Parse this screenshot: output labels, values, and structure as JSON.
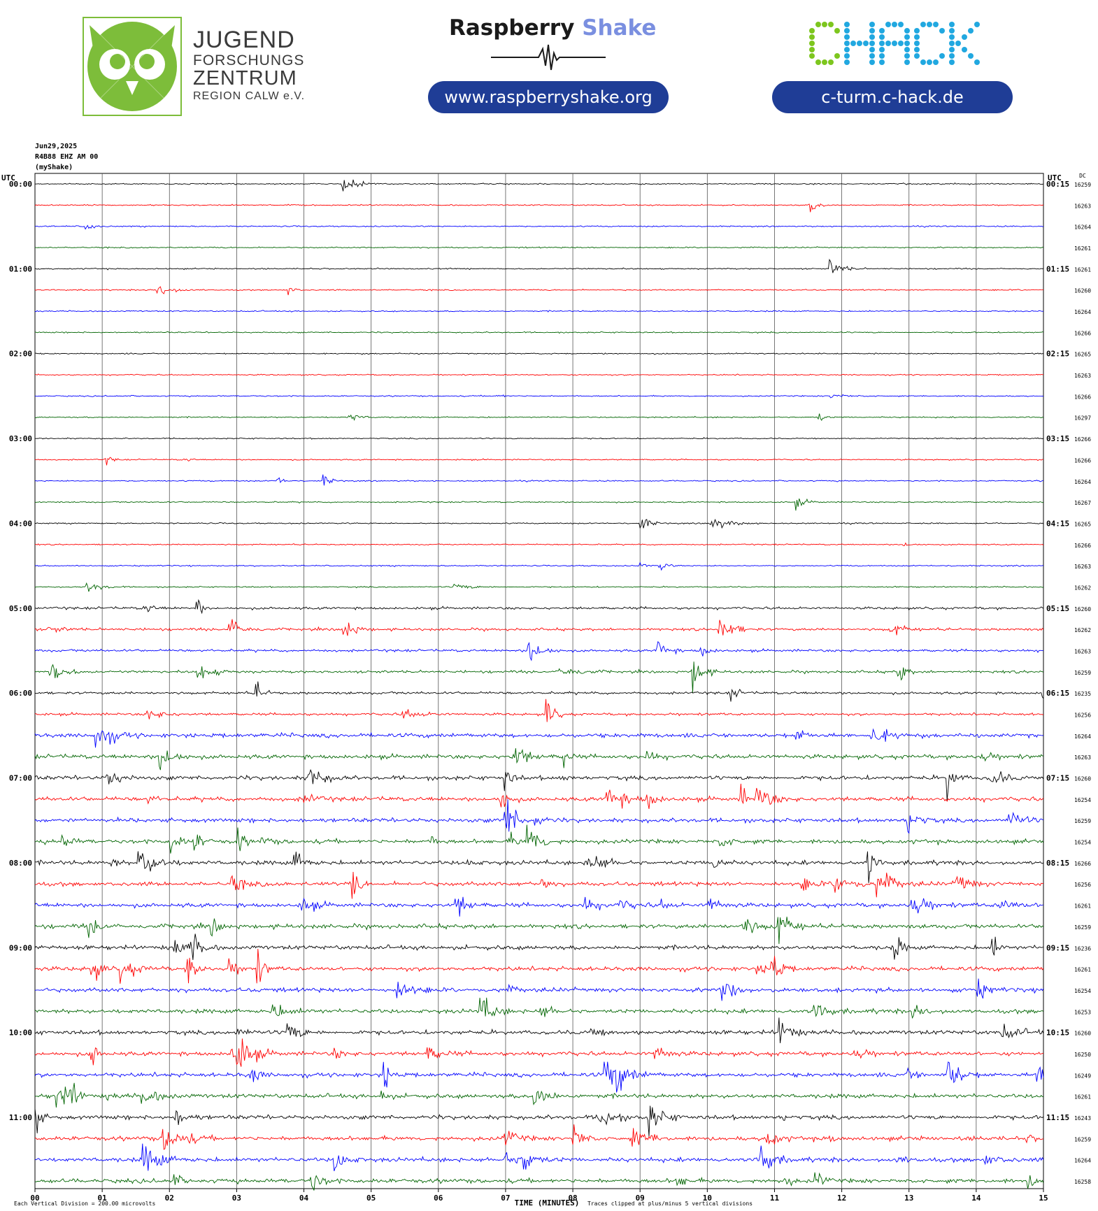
{
  "header": {
    "org_line1": "JUGEND",
    "org_line2": "FORSCHUNGS",
    "org_line3": "ZENTRUM",
    "org_line4": "REGION CALW e.V.",
    "rs_brand_1": "Raspberry",
    "rs_brand_2": "Shake",
    "rs_url": "www.raspberryshake.org",
    "chack_logo": "CHACK",
    "chack_url": "c-turm.c-hack.de",
    "brand_green": "#7dbd3a",
    "brand_blue": "#1f3d96",
    "chack_green": "#7dc61e",
    "chack_cyan": "#21a8e0"
  },
  "meta": {
    "date": "Jun29,2025",
    "station": "R4B88 EHZ AM 00",
    "source": "(myShake)"
  },
  "chart_data": {
    "type": "line",
    "title": "",
    "xlabel": "TIME (MINUTES)",
    "x_ticks": [
      "00",
      "01",
      "02",
      "03",
      "04",
      "05",
      "06",
      "07",
      "08",
      "09",
      "10",
      "11",
      "12",
      "13",
      "14",
      "15"
    ],
    "xlim": [
      0,
      15
    ],
    "left_header": "UTC",
    "right_header": "UTC",
    "dc_header": "DC",
    "left_labels": [
      "00:00",
      "01:00",
      "02:00",
      "03:00",
      "04:00",
      "05:00",
      "06:00",
      "07:00",
      "08:00",
      "09:00",
      "10:00",
      "11:00"
    ],
    "right_labels": [
      "00:15",
      "01:15",
      "02:15",
      "03:15",
      "04:15",
      "05:15",
      "06:15",
      "07:15",
      "08:15",
      "09:15",
      "10:15",
      "11:15"
    ],
    "dc_values": [
      "16259",
      "16263",
      "16264",
      "16261",
      "16261",
      "16260",
      "16264",
      "16266",
      "16265",
      "16263",
      "16266",
      "16297",
      "16266",
      "16266",
      "16264",
      "16267",
      "16265",
      "16266",
      "16263",
      "16262",
      "16260",
      "16262",
      "16263",
      "16259",
      "16235",
      "16256",
      "16264",
      "16263",
      "16260",
      "16254",
      "16259",
      "16254",
      "16266",
      "16256",
      "16261",
      "16259",
      "16236",
      "16261",
      "16254",
      "16253",
      "16260",
      "16250",
      "16249",
      "16261",
      "16243",
      "16259",
      "16264",
      "16258"
    ],
    "trace_colors": [
      "#000000",
      "#ff0000",
      "#0000ff",
      "#006400"
    ],
    "footer_left": "Each Vertical Division = 200.00 microvolts",
    "footer_right": "Traces clipped at plus/minus 5 vertical divisions",
    "series_note": "48 traces of 15 minutes each, 00:00 to 12:00 UTC"
  }
}
